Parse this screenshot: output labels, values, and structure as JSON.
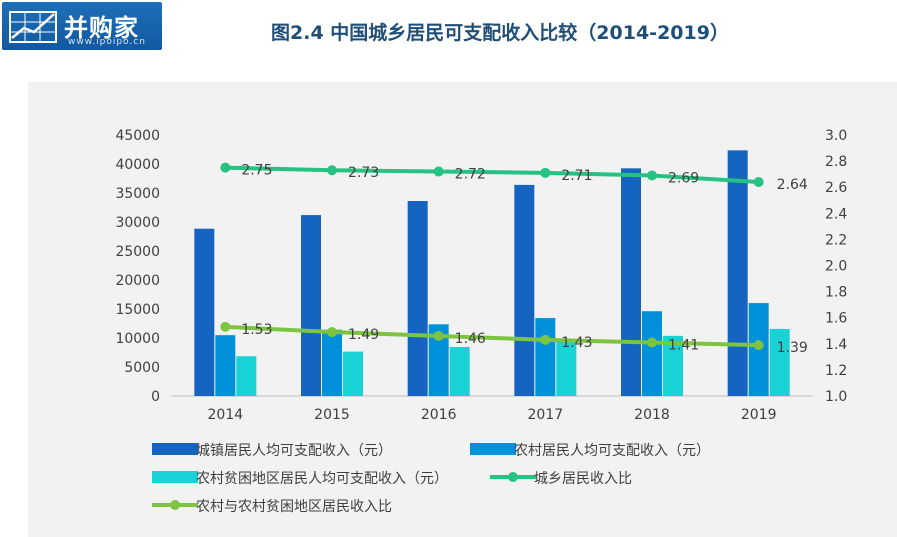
{
  "header": {
    "logo_text": "并购家",
    "logo_sub": "www.ipoipo.cn",
    "title": "图2.4 中国城乡居民可支配收入比较（2014-2019）"
  },
  "chart_data": {
    "type": "bar",
    "categories": [
      "2014",
      "2015",
      "2016",
      "2017",
      "2018",
      "2019"
    ],
    "y_left": {
      "min": 0,
      "max": 45000,
      "ticks": [
        "0",
        "5000",
        "10000",
        "15000",
        "20000",
        "25000",
        "30000",
        "35000",
        "40000",
        "45000"
      ]
    },
    "y_right": {
      "min": 1.0,
      "max": 3.0,
      "ticks": [
        "1.0",
        "1.2",
        "1.4",
        "1.6",
        "1.8",
        "2.0",
        "2.2",
        "2.4",
        "2.6",
        "2.8",
        "3.0"
      ]
    },
    "series": [
      {
        "name": "城镇居民人均可支配收入（元）",
        "kind": "bar",
        "axis": "left",
        "color": "#1565c0",
        "values": [
          28844,
          31195,
          33616,
          36396,
          39251,
          42359
        ]
      },
      {
        "name": "农村居民人均可支配收入（元）",
        "kind": "bar",
        "axis": "left",
        "color": "#0091da",
        "values": [
          10489,
          11422,
          12363,
          13432,
          14617,
          16021
        ]
      },
      {
        "name": "农村贫困地区居民人均可支配收入（元）",
        "kind": "bar",
        "axis": "left",
        "color": "#18d2d6",
        "values": [
          6852,
          7653,
          8452,
          9377,
          10371,
          11567
        ]
      },
      {
        "name": "城乡居民收入比",
        "kind": "line",
        "axis": "right",
        "color": "#26c281",
        "values": [
          2.75,
          2.73,
          2.72,
          2.71,
          2.69,
          2.64
        ],
        "labels": [
          "2.75",
          "2.73",
          "2.72",
          "2.71",
          "2.69",
          "2.64"
        ]
      },
      {
        "name": "农村与农村贫困地区居民收入比",
        "kind": "line",
        "axis": "right",
        "color": "#7dc540",
        "values": [
          1.53,
          1.49,
          1.46,
          1.43,
          1.41,
          1.39
        ],
        "labels": [
          "1.53",
          "1.49",
          "1.46",
          "1.43",
          "1.41",
          "1.39"
        ]
      }
    ],
    "gridlines": false,
    "legend_position": "bottom"
  }
}
